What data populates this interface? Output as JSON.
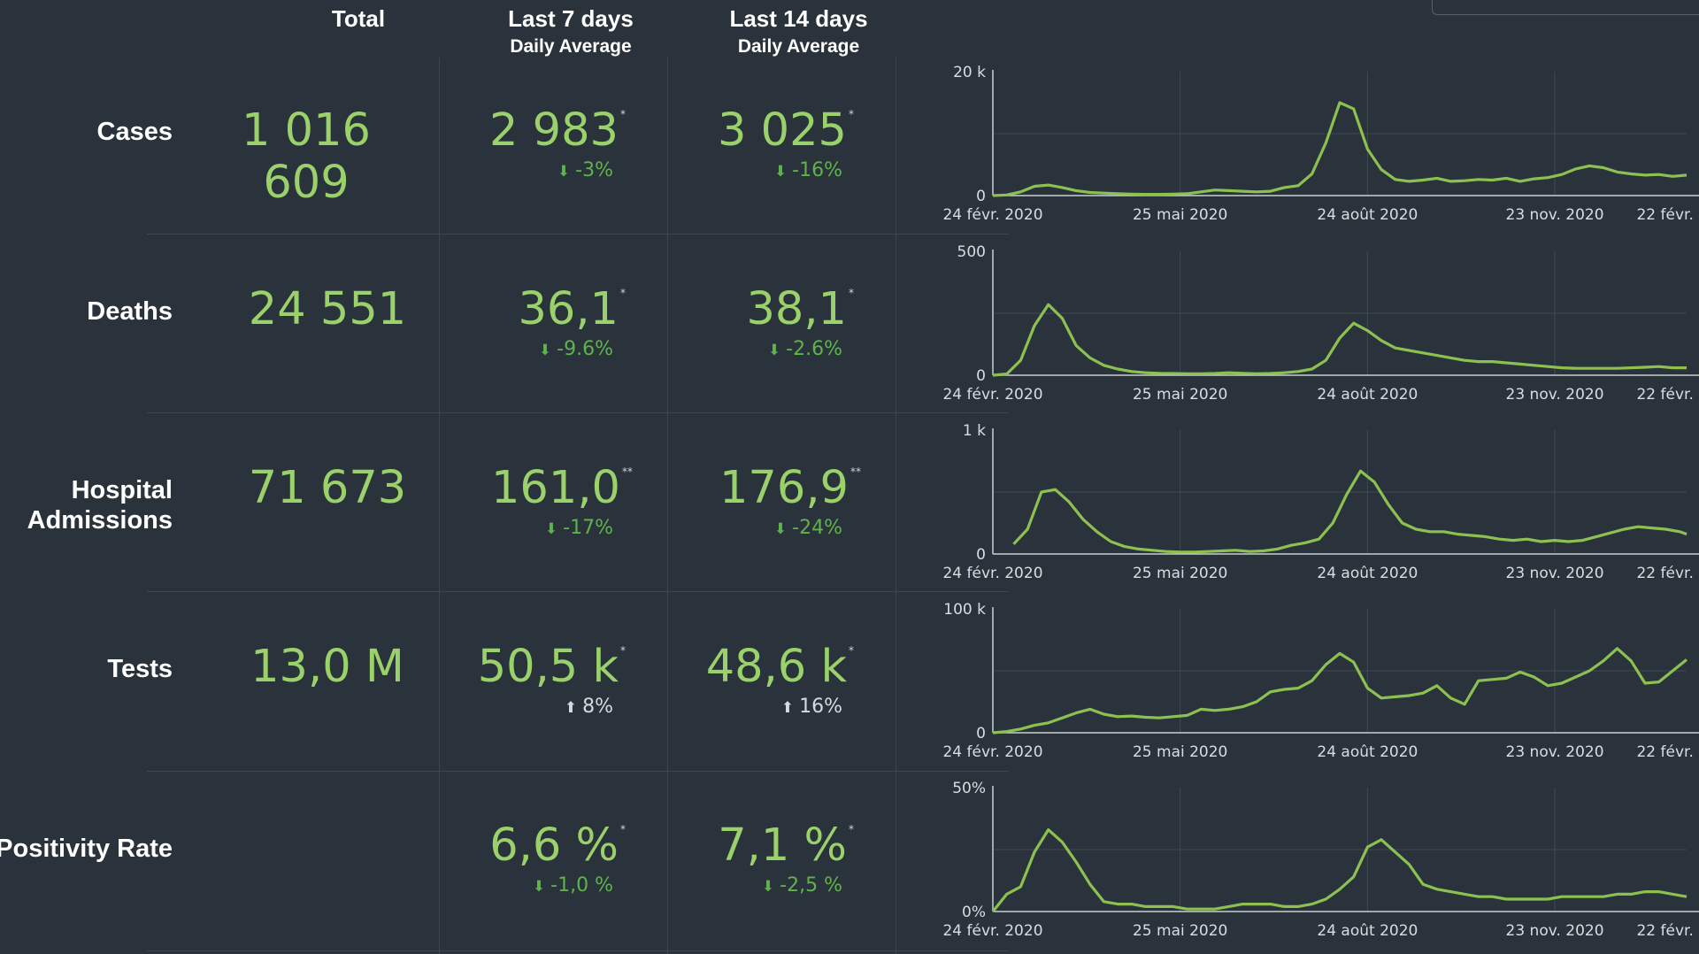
{
  "headers": {
    "total": "Total",
    "last7": "Last 7 days",
    "last14": "Last 14 days",
    "daily_average": "Daily Average"
  },
  "colors": {
    "background": "#2a333b",
    "value": "#9bd16b",
    "line": "#8cc152",
    "down": "#5fb34a",
    "grid": "#3f4a53"
  },
  "rows": [
    {
      "label": "Cases",
      "total": "1 016 609",
      "avg7": "2 983",
      "mark7": "*",
      "chg7": "-3%",
      "dir7": "down",
      "avg14": "3 025",
      "mark14": "*",
      "chg14": "-16%",
      "dir14": "down"
    },
    {
      "label": "Deaths",
      "total": "24 551",
      "avg7": "36,1",
      "mark7": "*",
      "chg7": "-9.6%",
      "dir7": "down",
      "avg14": "38,1",
      "mark14": "*",
      "chg14": "-2.6%",
      "dir14": "down"
    },
    {
      "label": "Hospital Admissions",
      "total": "71 673",
      "avg7": "161,0",
      "mark7": "**",
      "chg7": "-17%",
      "dir7": "down",
      "avg14": "176,9",
      "mark14": "**",
      "chg14": "-24%",
      "dir14": "down"
    },
    {
      "label": "Tests",
      "total": "13,0 M",
      "avg7": "50,5 k",
      "mark7": "*",
      "chg7": "8%",
      "dir7": "up",
      "avg14": "48,6 k",
      "mark14": "*",
      "chg14": "16%",
      "dir14": "up"
    },
    {
      "label": "Positivity Rate",
      "total": "",
      "avg7": "6,6 %",
      "mark7": "*",
      "chg7": "-1,0 %",
      "dir7": "down",
      "avg14": "7,1 %",
      "mark14": "*",
      "chg14": "-2,5 %",
      "dir14": "down"
    }
  ],
  "chart_data": [
    {
      "type": "line",
      "name": "",
      "ylim": [
        0,
        20000
      ],
      "yticks": [
        "0",
        "20 k"
      ],
      "xticks": [
        "24 févr. 2020",
        "25 mai 2020",
        "24 août 2020",
        "23 nov. 2020",
        "22 févr. 2021"
      ],
      "grid": true,
      "x_weeks": [
        0,
        2,
        4,
        6,
        8,
        10,
        12,
        14,
        16,
        18,
        20,
        22,
        24,
        26,
        28,
        30,
        32,
        34,
        36,
        38,
        40,
        42,
        44,
        46,
        48,
        50,
        52,
        54,
        56,
        58,
        60,
        62,
        64,
        66,
        68,
        70,
        72,
        74,
        76,
        78,
        80,
        82,
        84,
        86,
        88,
        90,
        92,
        94,
        96,
        98,
        100
      ],
      "values": [
        0,
        100,
        600,
        1500,
        1700,
        1300,
        800,
        500,
        400,
        300,
        250,
        200,
        200,
        250,
        300,
        600,
        900,
        800,
        700,
        600,
        700,
        1300,
        1600,
        3500,
        8500,
        15000,
        14000,
        7500,
        4200,
        2600,
        2300,
        2500,
        2800,
        2300,
        2400,
        2600,
        2500,
        2800,
        2300,
        2700,
        2900,
        3400,
        4300,
        4800,
        4500,
        3800,
        3500,
        3300,
        3400,
        3100,
        3300
      ]
    },
    {
      "type": "line",
      "name": "",
      "ylim": [
        0,
        500
      ],
      "yticks": [
        "0",
        "500"
      ],
      "xticks": [
        "24 févr. 2020",
        "25 mai 2020",
        "24 août 2020",
        "23 nov. 2020",
        "22 févr. 2021"
      ],
      "grid": true,
      "x_weeks": [
        0,
        2,
        4,
        6,
        8,
        10,
        12,
        14,
        16,
        18,
        20,
        22,
        24,
        26,
        28,
        30,
        32,
        34,
        36,
        38,
        40,
        42,
        44,
        46,
        48,
        50,
        52,
        54,
        56,
        58,
        60,
        62,
        64,
        66,
        68,
        70,
        72,
        74,
        76,
        78,
        80,
        82,
        84,
        86,
        88,
        90,
        92,
        94,
        96,
        98,
        100
      ],
      "values": [
        0,
        5,
        60,
        200,
        285,
        230,
        120,
        70,
        40,
        25,
        15,
        10,
        8,
        7,
        6,
        6,
        7,
        10,
        8,
        6,
        7,
        10,
        15,
        25,
        60,
        150,
        210,
        180,
        140,
        110,
        100,
        90,
        80,
        70,
        60,
        55,
        55,
        50,
        45,
        40,
        35,
        30,
        28,
        28,
        28,
        28,
        30,
        32,
        35,
        30,
        30
      ]
    },
    {
      "type": "line",
      "name": "",
      "ylim": [
        0,
        1000
      ],
      "yticks": [
        "0",
        "1 k"
      ],
      "xticks": [
        "24 févr. 2020",
        "25 mai 2020",
        "24 août 2020",
        "23 nov. 2020",
        "22 févr. 2021"
      ],
      "grid": true,
      "x_weeks": [
        3,
        5,
        7,
        9,
        11,
        13,
        15,
        17,
        19,
        21,
        23,
        25,
        27,
        29,
        31,
        33,
        35,
        37,
        39,
        41,
        43,
        45,
        47,
        49,
        51,
        53,
        55,
        57,
        59,
        61,
        63,
        65,
        67,
        69,
        71,
        73,
        75,
        77,
        79,
        81,
        83,
        85,
        87,
        89,
        91,
        93,
        95,
        97,
        99,
        100
      ],
      "values": [
        80,
        200,
        500,
        520,
        420,
        280,
        180,
        100,
        60,
        40,
        30,
        20,
        15,
        15,
        20,
        25,
        30,
        20,
        25,
        40,
        70,
        90,
        120,
        250,
        480,
        670,
        580,
        400,
        250,
        200,
        180,
        180,
        160,
        150,
        140,
        120,
        110,
        120,
        100,
        110,
        100,
        110,
        140,
        170,
        200,
        220,
        210,
        200,
        180,
        160
      ]
    },
    {
      "type": "line",
      "name": "",
      "ylim": [
        0,
        100000
      ],
      "yticks": [
        "0",
        "100 k"
      ],
      "xticks": [
        "24 févr. 2020",
        "25 mai 2020",
        "24 août 2020",
        "23 nov. 2020",
        "22 févr. 2021"
      ],
      "grid": true,
      "x_weeks": [
        0,
        2,
        4,
        6,
        8,
        10,
        12,
        14,
        16,
        18,
        20,
        22,
        24,
        26,
        28,
        30,
        32,
        34,
        36,
        38,
        40,
        42,
        44,
        46,
        48,
        50,
        52,
        54,
        56,
        58,
        60,
        62,
        64,
        66,
        68,
        70,
        72,
        74,
        76,
        78,
        80,
        82,
        84,
        86,
        88,
        90,
        92,
        94,
        96,
        98,
        100
      ],
      "values": [
        0,
        1000,
        3000,
        6000,
        8000,
        12000,
        16000,
        19000,
        15000,
        13000,
        13500,
        12500,
        12000,
        13000,
        14000,
        19000,
        18000,
        19000,
        21000,
        25000,
        33000,
        35000,
        36000,
        42000,
        55000,
        64000,
        57000,
        36000,
        28000,
        29000,
        30000,
        32000,
        38000,
        28000,
        23000,
        42000,
        43000,
        44000,
        49000,
        45000,
        38000,
        40000,
        45000,
        50000,
        58000,
        68000,
        58000,
        40000,
        41000,
        50000,
        59000
      ]
    },
    {
      "type": "line",
      "name": "",
      "ylim": [
        0,
        50
      ],
      "yticks": [
        "0%",
        "50%"
      ],
      "xticks": [
        "24 févr. 2020",
        "25 mai 2020",
        "24 août 2020",
        "23 nov. 2020",
        "22 févr. 2021"
      ],
      "grid": true,
      "x_weeks": [
        0,
        2,
        4,
        6,
        8,
        10,
        12,
        14,
        16,
        18,
        20,
        22,
        24,
        26,
        28,
        30,
        32,
        34,
        36,
        38,
        40,
        42,
        44,
        46,
        48,
        50,
        52,
        54,
        56,
        58,
        60,
        62,
        64,
        66,
        68,
        70,
        72,
        74,
        76,
        78,
        80,
        82,
        84,
        86,
        88,
        90,
        92,
        94,
        96,
        98,
        100
      ],
      "values": [
        0,
        7,
        10,
        24,
        33,
        28,
        20,
        11,
        4,
        3,
        3,
        2,
        2,
        2,
        1,
        1,
        1,
        2,
        3,
        3,
        3,
        2,
        2,
        3,
        5,
        9,
        14,
        26,
        29,
        24,
        19,
        11,
        9,
        8,
        7,
        6,
        6,
        5,
        5,
        5,
        5,
        6,
        6,
        6,
        6,
        7,
        7,
        8,
        8,
        7,
        6
      ]
    }
  ]
}
